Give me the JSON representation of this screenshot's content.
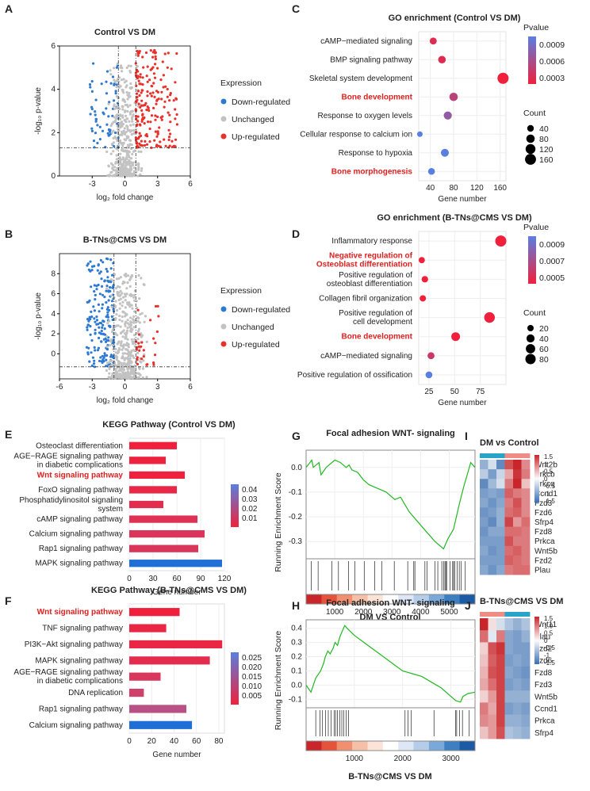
{
  "figure": {
    "panels": [
      "A",
      "B",
      "C",
      "D",
      "E",
      "F",
      "G",
      "H",
      "I",
      "J"
    ]
  },
  "chart_data": [
    {
      "id": "A",
      "type": "scatter",
      "title": "Control VS DM",
      "xlabel": "log₂ fold change",
      "ylabel": "-log₁₀ p-value",
      "xlim": [
        -6,
        6
      ],
      "ylim": [
        0,
        6
      ],
      "xticks": [
        "-3",
        "0",
        "3",
        "6"
      ],
      "yticks": [
        "0",
        "2",
        "4",
        "6"
      ],
      "thresholds": {
        "x": [
          -0.6,
          1.0
        ],
        "y": 1.3
      },
      "legend": {
        "title": "Expression",
        "items": [
          "Down-regulated",
          "Unchanged",
          "Up-regulated"
        ]
      },
      "series": [
        {
          "name": "Down-regulated",
          "color": "#2e7ad1",
          "x_range": [
            -3.2,
            -0.6
          ],
          "y_range": [
            1.3,
            5.2
          ],
          "count": 70
        },
        {
          "name": "Unchanged",
          "color": "#c2c2c2",
          "x_range": [
            -2.2,
            2.0
          ],
          "y_range": [
            0,
            5.2
          ],
          "count": 420
        },
        {
          "name": "Up-regulated",
          "color": "#e8312a",
          "x_range": [
            1.0,
            4.8
          ],
          "y_range": [
            1.3,
            5.8
          ],
          "count": 200
        }
      ]
    },
    {
      "id": "B",
      "type": "scatter",
      "title": "B-TNs@CMS VS DM",
      "xlabel": "log₂ fold change",
      "ylabel": "-log₁₀ p-value",
      "xlim": [
        -6,
        6
      ],
      "ylim": [
        -2.5,
        10
      ],
      "xticks": [
        "-6",
        "-3",
        "0",
        "3",
        "6"
      ],
      "yticks": [
        "0",
        "2",
        "4",
        "6",
        "8"
      ],
      "thresholds": {
        "x": [
          -1.0,
          1.0
        ],
        "y": -1.3
      },
      "legend": {
        "title": "Expression",
        "items": [
          "Down-regulated",
          "Unchanged",
          "Up-regulated"
        ]
      },
      "series": [
        {
          "name": "Down-regulated",
          "color": "#2e7ad1",
          "x_range": [
            -3.5,
            -1.0
          ],
          "y_range": [
            -1.3,
            9.5
          ],
          "count": 200
        },
        {
          "name": "Unchanged",
          "color": "#c2c2c2",
          "x_range": [
            -2.5,
            2.5
          ],
          "y_range": [
            -2.4,
            8.0
          ],
          "count": 450
        },
        {
          "name": "Up-regulated",
          "color": "#e8312a",
          "x_range": [
            1.0,
            3.2
          ],
          "y_range": [
            -1.3,
            4.8
          ],
          "count": 28
        }
      ]
    },
    {
      "id": "C",
      "type": "scatter",
      "title": "GO enrichment (Control VS DM)",
      "xlabel": "Gene  number",
      "xlim": [
        20,
        170
      ],
      "xticks": [
        "40",
        "80",
        "120",
        "160"
      ],
      "categories": [
        "cAMP−mediated signaling",
        "BMP signaling pathway",
        "Skeletal system development",
        "Bone development",
        "Response to oxygen levels",
        "Cellular response to calcium ion",
        "Response to hypoxia",
        "Bone morphogenesis"
      ],
      "highlight": [
        "Bone development",
        "Bone morphogenesis"
      ],
      "x": [
        45,
        60,
        165,
        80,
        70,
        22,
        65,
        42
      ],
      "pvalue": [
        0.0002,
        0.0002,
        0.0001,
        0.0004,
        0.0006,
        0.0009,
        0.0009,
        0.0009
      ],
      "count": [
        45,
        60,
        165,
        80,
        70,
        22,
        65,
        42
      ],
      "color_legend": {
        "title": "Pvalue",
        "ticks": [
          "0.0009",
          "0.0006",
          "0.0003"
        ]
      },
      "size_legend": {
        "title": "Count",
        "items": [
          "40",
          "80",
          "120",
          "160"
        ]
      }
    },
    {
      "id": "D",
      "type": "scatter",
      "title": "GO enrichment (B-TNs@CMS VS DM)",
      "xlabel": "Gene  number",
      "xlim": [
        15,
        100
      ],
      "xticks": [
        "25",
        "50",
        "75"
      ],
      "categories": [
        "Inflammatory response",
        "Negative regulation of\nOsteoblast differentiation",
        "Positive regulation of\nosteoblast differentiation",
        "Collagen fibril organization",
        "Positive regulation of\ncell development",
        "Bone development",
        "cAMP−mediated signaling",
        "Positive regulation of ossification"
      ],
      "highlight": [
        "Negative regulation of\nOsteoblast differentiation",
        "Bone development"
      ],
      "x": [
        95,
        18,
        21,
        19,
        84,
        51,
        27,
        25
      ],
      "pvalue": [
        0.0005,
        0.0005,
        0.0005,
        0.0005,
        0.0005,
        0.0005,
        0.0006,
        0.0009
      ],
      "count": [
        95,
        18,
        21,
        19,
        84,
        51,
        27,
        25
      ],
      "color_legend": {
        "title": "Pvalue",
        "ticks": [
          "0.0009",
          "0.0007",
          "0.0005"
        ]
      },
      "size_legend": {
        "title": "Count",
        "items": [
          "20",
          "40",
          "60",
          "80"
        ]
      }
    },
    {
      "id": "E",
      "type": "bar",
      "title": "KEGG Pathway (Control VS DM)",
      "xlabel": "Gene  number",
      "xlim": [
        0,
        120
      ],
      "xticks": [
        "0",
        "30",
        "60",
        "90",
        "120"
      ],
      "categories": [
        "Osteoclast differentiation",
        "AGE−RAGE signaling pathway\nin diabetic complications",
        "Wnt signaling pathway",
        "FoxO signaling pathway",
        "Phosphatidylinositol signaling\nsystem",
        "cAMP signaling pathway",
        "Calcium signaling pathway",
        "Rap1 signaling pathway",
        "MAPK signaling pathway"
      ],
      "highlight": [
        "Wnt signaling pathway"
      ],
      "values": [
        60,
        46,
        70,
        60,
        43,
        86,
        95,
        87,
        117
      ],
      "pvalue": [
        0.008,
        0.009,
        0.009,
        0.012,
        0.015,
        0.017,
        0.02,
        0.02,
        0.045
      ],
      "color_legend": {
        "ticks": [
          "0.04",
          "0.03",
          "0.02",
          "0.01"
        ]
      }
    },
    {
      "id": "F",
      "type": "bar",
      "title": "KEGG Pathway (B-TNs@CMS VS DM)",
      "xlabel": "Gene  number",
      "xlim": [
        0,
        85
      ],
      "xticks": [
        "0",
        "20",
        "40",
        "60",
        "80"
      ],
      "categories": [
        "Wnt signaling pathway",
        "TNF signaling pathway",
        "PI3K−Akt signaling pathway",
        "MAPK signaling pathway",
        "AGE−RAGE signaling pathway\nin diabetic complications",
        "DNA replication",
        "Rap1 signaling pathway",
        "Calcium signaling pathway"
      ],
      "highlight": [
        "Wnt signaling pathway"
      ],
      "values": [
        45,
        33,
        83,
        72,
        28,
        13,
        51,
        56
      ],
      "pvalue": [
        0.005,
        0.007,
        0.007,
        0.009,
        0.012,
        0.015,
        0.02,
        0.026
      ],
      "color_legend": {
        "ticks": [
          "0.025",
          "0.020",
          "0.015",
          "0.010",
          "0.005"
        ]
      }
    },
    {
      "id": "G",
      "type": "line",
      "title": "Focal adhesion WNT- signaling",
      "subtitle": "DM VS Control",
      "ylabel": "Running Enrichment Score",
      "xlim": [
        0,
        5900
      ],
      "ylim": [
        -0.37,
        0.07
      ],
      "xticks": [
        "1000",
        "2000",
        "3000",
        "4000",
        "5000"
      ],
      "yticks": [
        "0.0",
        "-0.1",
        "-0.2",
        "-0.3"
      ],
      "x": [
        0,
        200,
        250,
        450,
        520,
        700,
        800,
        1000,
        1200,
        1400,
        1500,
        1600,
        1800,
        2000,
        2200,
        2400,
        2600,
        2800,
        3100,
        3300,
        3600,
        3900,
        4200,
        4500,
        4800,
        4950,
        5150,
        5350,
        5500,
        5750,
        5900
      ],
      "values": [
        0.0,
        0.03,
        0.0,
        0.02,
        -0.03,
        0.0,
        0.01,
        0.03,
        0.02,
        0.0,
        0.01,
        -0.01,
        -0.02,
        -0.05,
        -0.07,
        -0.08,
        -0.09,
        -0.1,
        -0.13,
        -0.12,
        -0.18,
        -0.22,
        -0.26,
        -0.3,
        -0.33,
        -0.29,
        -0.25,
        -0.15,
        -0.08,
        0.02,
        0.0
      ],
      "hits": [
        180,
        420,
        900,
        1130,
        1480,
        1700,
        2030,
        2400,
        2650,
        3080,
        3550,
        3760,
        3800,
        4150,
        4220,
        4500,
        4600,
        4740,
        4800,
        4850,
        4880,
        4910,
        5030,
        5120,
        5150,
        5190,
        5280,
        5350,
        5420,
        5560
      ]
    },
    {
      "id": "H",
      "type": "line",
      "title": "Focal adhesion WNT- signaling",
      "subtitle": "B-TNs@CMS VS DM",
      "ylabel": "Running Enrichment Score",
      "xlim": [
        0,
        3500
      ],
      "ylim": [
        -0.16,
        0.46
      ],
      "xticks": [
        "1000",
        "2000",
        "3000"
      ],
      "yticks": [
        "0.4",
        "0.3",
        "0.2",
        "0.1",
        "0.0",
        "-0.1"
      ],
      "x": [
        0,
        100,
        200,
        300,
        360,
        400,
        450,
        500,
        560,
        600,
        650,
        700,
        750,
        800,
        850,
        1000,
        1200,
        1400,
        1600,
        1800,
        2000,
        2100,
        2200,
        2400,
        2600,
        2800,
        3000,
        3100,
        3200,
        3250,
        3350,
        3500
      ],
      "values": [
        0.0,
        -0.05,
        0.05,
        0.1,
        0.15,
        0.2,
        0.24,
        0.22,
        0.26,
        0.3,
        0.28,
        0.34,
        0.38,
        0.42,
        0.4,
        0.35,
        0.3,
        0.25,
        0.2,
        0.15,
        0.1,
        0.09,
        0.08,
        0.06,
        0.02,
        -0.02,
        -0.08,
        -0.11,
        -0.12,
        -0.08,
        -0.06,
        -0.05
      ],
      "hits": [
        200,
        290,
        340,
        400,
        460,
        520,
        580,
        610,
        650,
        700,
        740,
        780,
        830,
        880,
        2050,
        2110,
        2180,
        2650,
        3100,
        3120,
        3180,
        3240,
        3380
      ]
    },
    {
      "id": "I",
      "type": "heatmap",
      "title": "DM vs Control",
      "rows": [
        "Wnt2b",
        "Prkcb",
        "Prkcq",
        "Ccnd1",
        "Fzd3",
        "Fzd6",
        "Sfrp4",
        "Fzd8",
        "Prkca",
        "Wnt5b",
        "Fzd2",
        "Plau"
      ],
      "group_colors": [
        "#29a3c7",
        "#29a3c7",
        "#29a3c7",
        "#ee8c85",
        "#ee8c85",
        "#ee8c85"
      ],
      "values": [
        [
          -0.8,
          -0.3,
          -1.2,
          1.2,
          1.5,
          0.8
        ],
        [
          -0.5,
          -1.0,
          -0.4,
          0.6,
          1.4,
          0.9
        ],
        [
          -1.2,
          -0.7,
          -0.3,
          0.9,
          1.5,
          0.4
        ],
        [
          -1.0,
          -0.9,
          -1.0,
          1.1,
          0.9,
          0.8
        ],
        [
          -0.9,
          -1.1,
          -0.9,
          0.9,
          1.2,
          0.8
        ],
        [
          -1.1,
          -1.0,
          -0.8,
          1.0,
          1.1,
          0.8
        ],
        [
          -1.0,
          -1.2,
          -0.8,
          1.3,
          0.7,
          1.0
        ],
        [
          -1.1,
          -0.9,
          -0.9,
          1.0,
          1.0,
          0.9
        ],
        [
          -1.0,
          -1.0,
          -1.0,
          1.2,
          0.9,
          0.9
        ],
        [
          -0.9,
          -1.1,
          -1.0,
          1.0,
          1.1,
          0.9
        ],
        [
          -1.0,
          -1.0,
          -1.0,
          1.1,
          1.0,
          0.9
        ],
        [
          -0.9,
          -1.1,
          -0.9,
          0.9,
          1.0,
          1.0
        ]
      ],
      "color_ticks": [
        "1.5",
        "1",
        "0.5",
        "0",
        "-0.5",
        "-1",
        "-1.5"
      ]
    },
    {
      "id": "J",
      "type": "heatmap",
      "title": "B-TNs@CMS VS DM",
      "rows": [
        "Wnt11",
        "Plau",
        "Fzd2",
        "Fzd6",
        "Fzd8",
        "Fzd3",
        "Wnt5b",
        "Ccnd1",
        "Prkca",
        "Sfrp4"
      ],
      "group_colors": [
        "#ee8c85",
        "#ee8c85",
        "#ee8c85",
        "#29a3c7",
        "#29a3c7",
        "#29a3c7"
      ],
      "values": [
        [
          1.5,
          0.2,
          -0.3,
          -0.6,
          -0.8,
          -0.6
        ],
        [
          1.0,
          -0.2,
          0.9,
          -0.9,
          -1.0,
          -0.8
        ],
        [
          0.3,
          1.2,
          1.4,
          -0.9,
          -1.0,
          -1.0
        ],
        [
          0.4,
          1.1,
          1.3,
          -1.0,
          -0.9,
          -1.0
        ],
        [
          0.5,
          1.2,
          1.3,
          -0.9,
          -1.0,
          -1.1
        ],
        [
          0.6,
          1.0,
          1.3,
          -1.0,
          -0.9,
          -1.0
        ],
        [
          0.3,
          0.7,
          1.3,
          -0.8,
          -0.8,
          -0.8
        ],
        [
          0.9,
          0.6,
          1.3,
          -1.0,
          -0.9,
          -1.0
        ],
        [
          0.8,
          0.7,
          1.3,
          -0.8,
          -0.8,
          -0.9
        ],
        [
          0.4,
          0.7,
          1.2,
          -0.6,
          -0.7,
          -0.8
        ]
      ],
      "color_ticks": [
        "1.5",
        "1.0",
        "0.5",
        "0",
        "-0.5",
        "-1",
        "-1.5"
      ]
    }
  ]
}
